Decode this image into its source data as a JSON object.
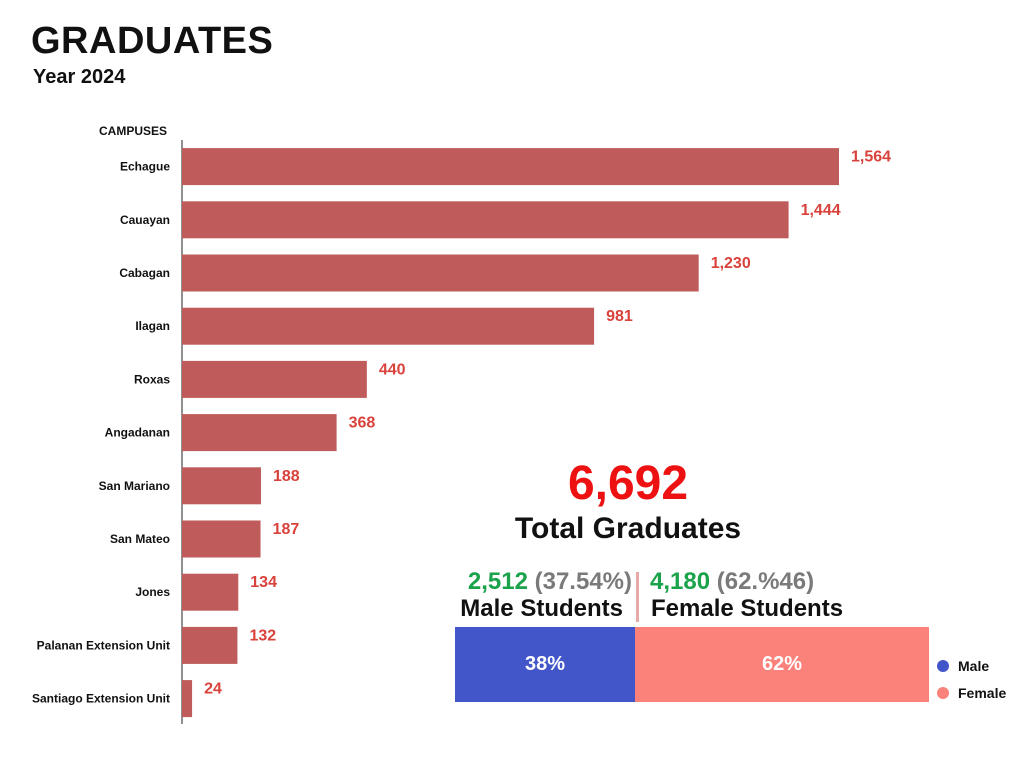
{
  "title": "GRADUATES",
  "subtitle": "Year 2024",
  "chart_data": [
    {
      "type": "bar",
      "orientation": "horizontal",
      "category_header": "CAMPUSES",
      "categories": [
        "Echague",
        "Cauayan",
        "Cabagan",
        "Ilagan",
        "Roxas",
        "Angadanan",
        "San Mariano",
        "San Mateo",
        "Jones",
        "Palanan Extension Unit",
        "Santiago Extension Unit"
      ],
      "values": [
        1564,
        1444,
        1230,
        981,
        440,
        368,
        188,
        187,
        134,
        132,
        24
      ],
      "value_labels": [
        "1,564",
        "1,444",
        "1,230",
        "981",
        "440",
        "368",
        "188",
        "187",
        "134",
        "132",
        "24"
      ],
      "bar_color": "#bf5b5a",
      "label_color": "#d9413b"
    },
    {
      "type": "bar",
      "orientation": "stacked-100",
      "series": [
        {
          "name": "Male",
          "value": 38,
          "label": "38%",
          "color": "#4356c9"
        },
        {
          "name": "Female",
          "value": 62,
          "label": "62%",
          "color": "#fb827b"
        }
      ],
      "legend_position": "right"
    }
  ],
  "summary": {
    "total": "6,692",
    "total_label": "Total Graduates",
    "male": {
      "count": "2,512",
      "percent": "(37.54%)",
      "label": "Male Students"
    },
    "female": {
      "count": "4,180",
      "percent": "(62.%46)",
      "label": "Female Students"
    }
  }
}
